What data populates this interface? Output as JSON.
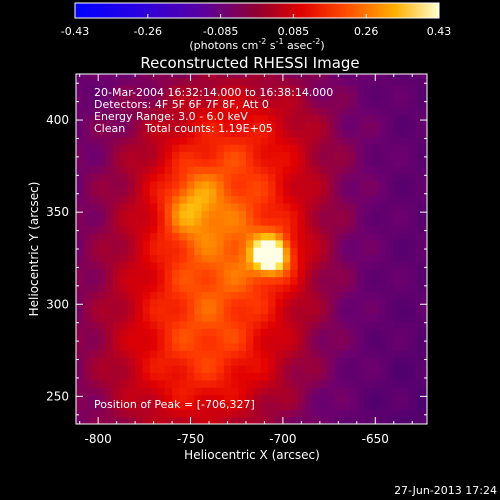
{
  "colorbar": {
    "ticks": [
      "-0.43",
      "-0.26",
      "-0.085",
      "0.085",
      "0.26",
      "0.43"
    ],
    "unit_base": "(photons cm",
    "unit_exp1": "-2",
    "unit_mid": " s",
    "unit_exp2": "-1",
    "unit_mid2": " asec",
    "unit_exp3": "-2",
    "unit_end": ")",
    "range": [
      -0.43,
      0.43
    ]
  },
  "title": "Reconstructed RHESSI Image",
  "info": {
    "line1": "20-Mar-2004 16:32:14.000 to 16:38:14.000",
    "line2": "Detectors: 4F 5F 6F 7F 8F, Att 0",
    "line3": "Energy Range: 3.0 - 6.0 keV",
    "line4_left": "Clean",
    "line4_right": "Total counts: 1.19E+05"
  },
  "peak_text": "Position of Peak = [-706,327]",
  "timestamp": "27-Jun-2013 17:24",
  "colors": {
    "background": "#000000",
    "text": "#ffffff",
    "colormap": [
      "#0000ff",
      "#3f00c0",
      "#600080",
      "#b00000",
      "#ff2000",
      "#ff8000",
      "#ffd000",
      "#ffffff"
    ]
  },
  "chart_data": {
    "type": "heatmap",
    "title": "Reconstructed RHESSI Image",
    "xlabel": "Heliocentric X (arcsec)",
    "ylabel": "Heliocentric Y (arcsec)",
    "xlim": [
      -812,
      -622
    ],
    "ylim": [
      235,
      425
    ],
    "x_ticks": [
      -800,
      -750,
      -700,
      -650
    ],
    "y_ticks": [
      250,
      300,
      350,
      400
    ],
    "x_tick_labels": [
      "-800",
      "-750",
      "-700",
      "-650"
    ],
    "y_tick_labels": [
      "250",
      "300",
      "350",
      "400"
    ],
    "peak": {
      "x": -706,
      "y": 327
    },
    "secondary_source": {
      "x": -750,
      "y": 353
    },
    "pixel_arcsec": 4
  }
}
